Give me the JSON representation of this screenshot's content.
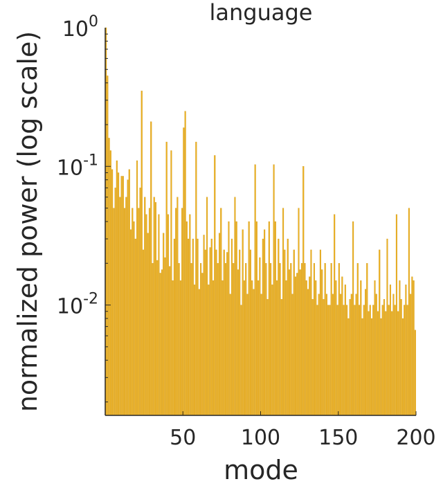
{
  "chart_data": {
    "type": "bar",
    "title": "language",
    "xlabel": "mode",
    "ylabel": "normalized power (log scale)",
    "xlim": [
      0,
      200
    ],
    "ylim": [
      0.0016,
      1
    ],
    "yscale": "log",
    "grid": false,
    "legend": "none",
    "bar_color": "#EDB120",
    "x_ticks": [
      50,
      100,
      150,
      200
    ],
    "x_tick_labels": [
      "50",
      "100",
      "150",
      "200"
    ],
    "y_ticks": [
      {
        "value": 0.01,
        "base": "10",
        "exp": "-2"
      },
      {
        "value": 0.1,
        "base": "10",
        "exp": "-1"
      },
      {
        "value": 1,
        "base": "10",
        "exp": "0"
      }
    ],
    "values": [
      1.0,
      0.45,
      0.16,
      0.13,
      0.095,
      0.05,
      0.07,
      0.11,
      0.09,
      0.06,
      0.085,
      0.085,
      0.05,
      0.06,
      0.08,
      0.095,
      0.035,
      0.05,
      0.04,
      0.03,
      0.11,
      0.05,
      0.07,
      0.35,
      0.025,
      0.06,
      0.045,
      0.033,
      0.05,
      0.21,
      0.02,
      0.06,
      0.055,
      0.021,
      0.045,
      0.017,
      0.018,
      0.033,
      0.022,
      0.15,
      0.045,
      0.019,
      0.13,
      0.015,
      0.03,
      0.05,
      0.06,
      0.02,
      0.015,
      0.05,
      0.19,
      0.25,
      0.04,
      0.03,
      0.045,
      0.02,
      0.03,
      0.014,
      0.15,
      0.03,
      0.013,
      0.02,
      0.017,
      0.032,
      0.025,
      0.06,
      0.014,
      0.026,
      0.03,
      0.015,
      0.12,
      0.025,
      0.02,
      0.033,
      0.05,
      0.015,
      0.025,
      0.02,
      0.024,
      0.04,
      0.012,
      0.03,
      0.02,
      0.06,
      0.04,
      0.018,
      0.025,
      0.01,
      0.035,
      0.015,
      0.02,
      0.012,
      0.04,
      0.025,
      0.015,
      0.013,
      0.103,
      0.04,
      0.015,
      0.022,
      0.012,
      0.03,
      0.035,
      0.02,
      0.011,
      0.04,
      0.02,
      0.014,
      0.103,
      0.04,
      0.015,
      0.03,
      0.02,
      0.011,
      0.05,
      0.025,
      0.015,
      0.03,
      0.018,
      0.02,
      0.012,
      0.025,
      0.016,
      0.017,
      0.05,
      0.018,
      0.02,
      0.1,
      0.02,
      0.015,
      0.013,
      0.016,
      0.025,
      0.011,
      0.02,
      0.015,
      0.01,
      0.012,
      0.025,
      0.018,
      0.011,
      0.02,
      0.012,
      0.01,
      0.01,
      0.02,
      0.012,
      0.045,
      0.015,
      0.01,
      0.02,
      0.012,
      0.016,
      0.01,
      0.014,
      0.01,
      0.008,
      0.011,
      0.012,
      0.04,
      0.01,
      0.012,
      0.02,
      0.01,
      0.015,
      0.008,
      0.01,
      0.013,
      0.02,
      0.009,
      0.01,
      0.008,
      0.01,
      0.015,
      0.012,
      0.009,
      0.025,
      0.008,
      0.01,
      0.011,
      0.009,
      0.03,
      0.01,
      0.014,
      0.009,
      0.012,
      0.01,
      0.045,
      0.009,
      0.015,
      0.011,
      0.008,
      0.01,
      0.014,
      0.01,
      0.05,
      0.012,
      0.016,
      0.015,
      0.0066
    ]
  }
}
